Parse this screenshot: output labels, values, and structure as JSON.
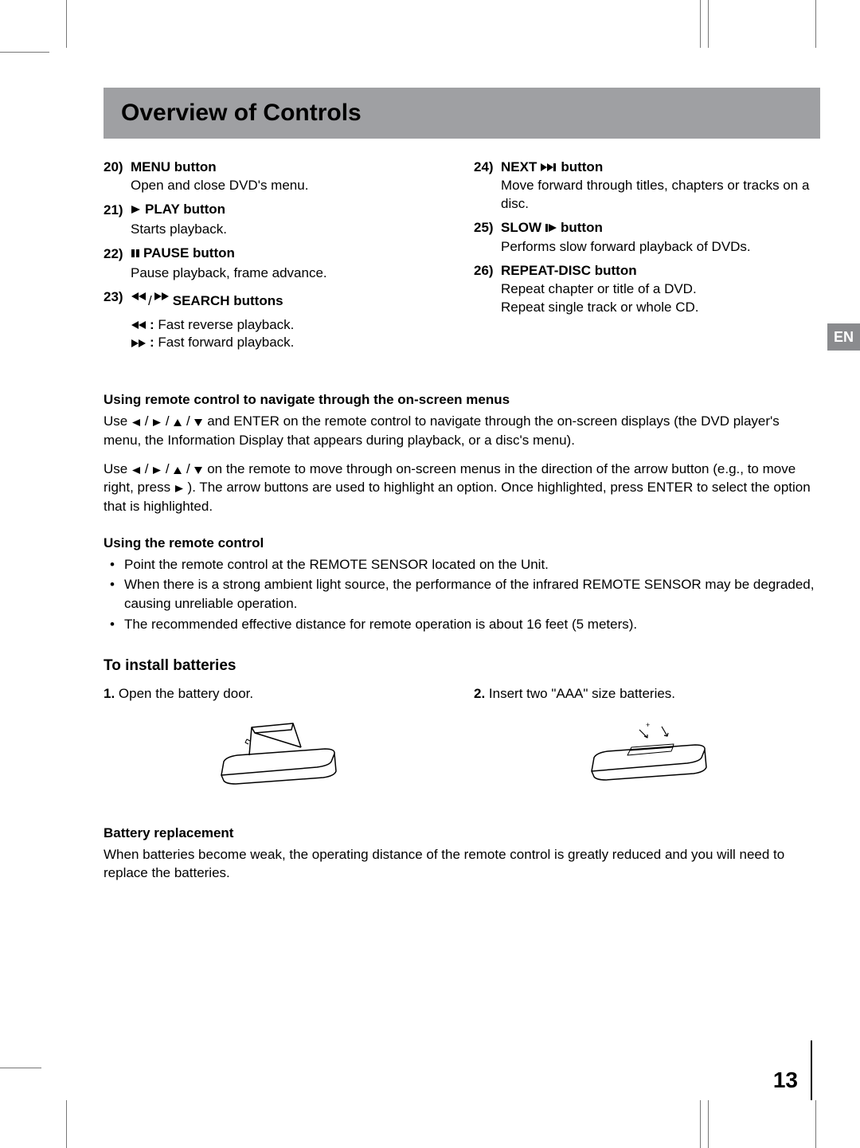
{
  "title": "Overview of Controls",
  "langBadge": "EN",
  "pageNumber": "13",
  "leftControls": [
    {
      "num": "20)",
      "iconBefore": null,
      "iconAfter": null,
      "label": "MENU button",
      "desc": [
        "Open and close DVD's menu."
      ]
    },
    {
      "num": "21)",
      "iconBefore": "play",
      "iconAfter": null,
      "label": "PLAY button",
      "desc": [
        "Starts playback."
      ]
    },
    {
      "num": "22)",
      "iconBefore": "pause",
      "iconAfter": null,
      "label": "PAUSE button",
      "desc": [
        "Pause playback, frame advance."
      ]
    },
    {
      "num": "23)",
      "iconBefore": "rewind-fwd",
      "iconAfter": null,
      "label": "SEARCH buttons",
      "desc": []
    }
  ],
  "searchLines": [
    {
      "icon": "rewind",
      "text": ": Fast reverse playback."
    },
    {
      "icon": "fastfwd",
      "text": ": Fast forward playback."
    }
  ],
  "rightControls": [
    {
      "num": "24)",
      "iconBefore": null,
      "iconAfter": "next",
      "label1": "NEXT",
      "label2": "button",
      "desc": [
        "Move forward through titles, chapters or tracks on a disc."
      ]
    },
    {
      "num": "25)",
      "iconBefore": null,
      "iconAfter": "slow",
      "label1": "SLOW",
      "label2": "button",
      "desc": [
        "Performs slow forward playback of DVDs."
      ]
    },
    {
      "num": "26)",
      "iconBefore": null,
      "iconAfter": null,
      "label1": "REPEAT-DISC button",
      "label2": "",
      "desc": [
        "Repeat chapter or title of a DVD.",
        "Repeat single track or whole CD."
      ]
    }
  ],
  "navSection": {
    "title": "Using remote control to navigate through the on-screen menus",
    "p1_parts": [
      "Use ",
      " / ",
      " / ",
      "  / ",
      " and ENTER on the remote control to navigate through the on-screen displays (the DVD player's menu, the Information Display that appears during playback, or a disc's menu)."
    ],
    "p2_parts": [
      "Use ",
      " / ",
      " / ",
      "  / ",
      "  on the remote to move through on-screen menus in the direction of the arrow button (e.g., to move right, press ",
      " ). The arrow buttons are used to highlight an option. Once highlighted, press ENTER to select the option that is highlighted."
    ]
  },
  "remoteSection": {
    "title": "Using the remote control",
    "bullets": [
      "Point the remote control at the REMOTE SENSOR located on the Unit.",
      "When there is a strong ambient light source, the performance of the infrared REMOTE SENSOR may be degraded, causing unreliable operation.",
      "The recommended effective distance for remote operation is about 16 feet (5 meters)."
    ]
  },
  "install": {
    "title": "To install batteries",
    "step1": {
      "num": "1.",
      "text": "Open the battery door."
    },
    "step2": {
      "num": "2.",
      "text": "Insert two \"AAA\" size batteries."
    }
  },
  "battery": {
    "title": "Battery replacement",
    "text": "When batteries become weak, the operating distance of the remote control is greatly reduced and you will need to replace the batteries."
  },
  "style": {
    "titleBg": "#9fa0a3",
    "badgeBg": "#8a8b8e",
    "textColor": "#000000"
  }
}
